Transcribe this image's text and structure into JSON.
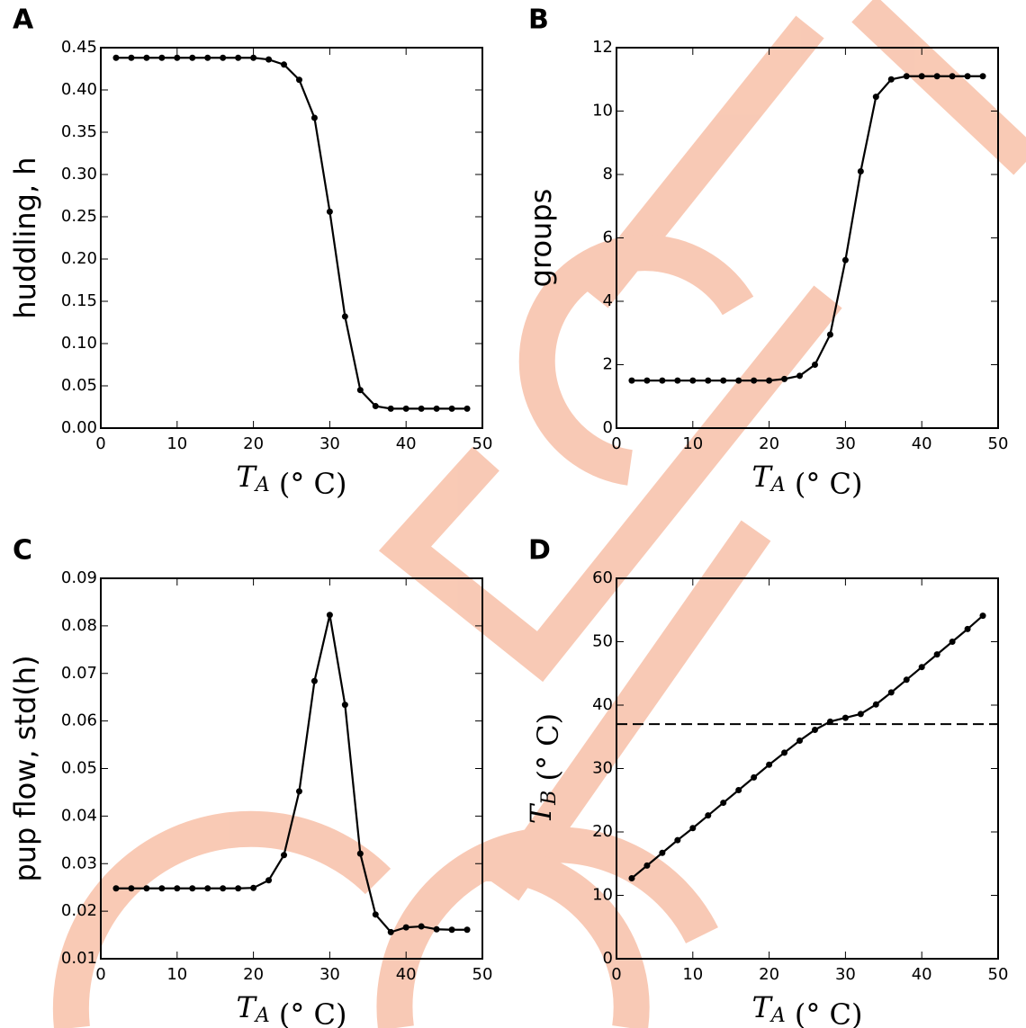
{
  "chart_data": [
    {
      "type": "line",
      "panel_label": "A",
      "xlabel": "T_A (° C)",
      "ylabel": "huddling, h",
      "color": "#000000",
      "x": [
        2,
        4,
        6,
        8,
        10,
        12,
        14,
        16,
        18,
        20,
        22,
        24,
        26,
        28,
        30,
        32,
        34,
        36,
        38,
        40,
        42,
        44,
        46,
        48
      ],
      "values": [
        0.438,
        0.438,
        0.438,
        0.438,
        0.438,
        0.438,
        0.438,
        0.438,
        0.438,
        0.438,
        0.436,
        0.43,
        0.412,
        0.367,
        0.256,
        0.132,
        0.045,
        0.026,
        0.023,
        0.023,
        0.023,
        0.023,
        0.023,
        0.023
      ],
      "xlim": [
        0,
        50
      ],
      "xticks": [
        0,
        10,
        20,
        30,
        40,
        50
      ],
      "ylim": [
        0,
        0.45
      ],
      "yticks": [
        {
          "value": 0,
          "label": "0.00"
        },
        0.05,
        {
          "value": 0.1,
          "label": "0.10"
        },
        0.15,
        {
          "value": 0.2,
          "label": "0.20"
        },
        0.25,
        {
          "value": 0.3,
          "label": "0.30"
        },
        0.35,
        {
          "value": 0.4,
          "label": "0.40"
        },
        0.45
      ]
    },
    {
      "type": "line",
      "panel_label": "B",
      "xlabel": "T_A (° C)",
      "ylabel": "groups",
      "color": "#000000",
      "x": [
        2,
        4,
        6,
        8,
        10,
        12,
        14,
        16,
        18,
        20,
        22,
        24,
        26,
        28,
        30,
        32,
        34,
        36,
        38,
        40,
        42,
        44,
        46,
        48
      ],
      "values": [
        1.5,
        1.5,
        1.5,
        1.5,
        1.5,
        1.5,
        1.5,
        1.5,
        1.5,
        1.5,
        1.55,
        1.65,
        2.0,
        2.95,
        5.3,
        8.1,
        10.45,
        11.0,
        11.1,
        11.1,
        11.1,
        11.1,
        11.1,
        11.1
      ],
      "xlim": [
        0,
        50
      ],
      "xticks": [
        0,
        10,
        20,
        30,
        40,
        50
      ],
      "ylim": [
        0,
        12
      ],
      "yticks": [
        0,
        2,
        4,
        6,
        8,
        10,
        12
      ]
    },
    {
      "type": "line",
      "panel_label": "C",
      "xlabel": "T_A (° C)",
      "ylabel": "pup flow, std(h)",
      "color": "#000000",
      "x": [
        2,
        4,
        6,
        8,
        10,
        12,
        14,
        16,
        18,
        20,
        22,
        24,
        26,
        28,
        30,
        32,
        34,
        36,
        38,
        40,
        42,
        44,
        46,
        48
      ],
      "values": [
        0.0248,
        0.0248,
        0.0248,
        0.0248,
        0.0248,
        0.0248,
        0.0248,
        0.0248,
        0.0248,
        0.0249,
        0.0265,
        0.0318,
        0.0452,
        0.0684,
        0.0823,
        0.0634,
        0.0321,
        0.0193,
        0.0156,
        0.0166,
        0.0168,
        0.0162,
        0.0161,
        0.0161
      ],
      "xlim": [
        0,
        50
      ],
      "xticks": [
        0,
        10,
        20,
        30,
        40,
        50
      ],
      "ylim": [
        0.01,
        0.09
      ],
      "yticks": [
        0.01,
        0.02,
        0.03,
        0.04,
        0.05,
        0.06,
        0.07,
        0.08,
        0.09
      ]
    },
    {
      "type": "line",
      "panel_label": "D",
      "xlabel": "T_A (° C)",
      "ylabel": "T_B (° C)",
      "color": "#000000",
      "hline": 37,
      "x": [
        2,
        4,
        6,
        8,
        10,
        12,
        14,
        16,
        18,
        20,
        22,
        24,
        26,
        28,
        30,
        32,
        34,
        36,
        38,
        40,
        42,
        44,
        46,
        48
      ],
      "values": [
        12.7,
        14.7,
        16.7,
        18.7,
        20.6,
        22.6,
        24.6,
        26.6,
        28.6,
        30.6,
        32.5,
        34.4,
        36.1,
        37.4,
        38.0,
        38.6,
        40.1,
        42.0,
        44.0,
        46.0,
        48.0,
        50.0,
        52.0,
        54.1
      ],
      "xlim": [
        0,
        50
      ],
      "xticks": [
        0,
        10,
        20,
        30,
        40,
        50
      ],
      "ylim": [
        0,
        60
      ],
      "yticks": [
        0,
        10,
        20,
        30,
        40,
        50,
        60
      ]
    }
  ]
}
